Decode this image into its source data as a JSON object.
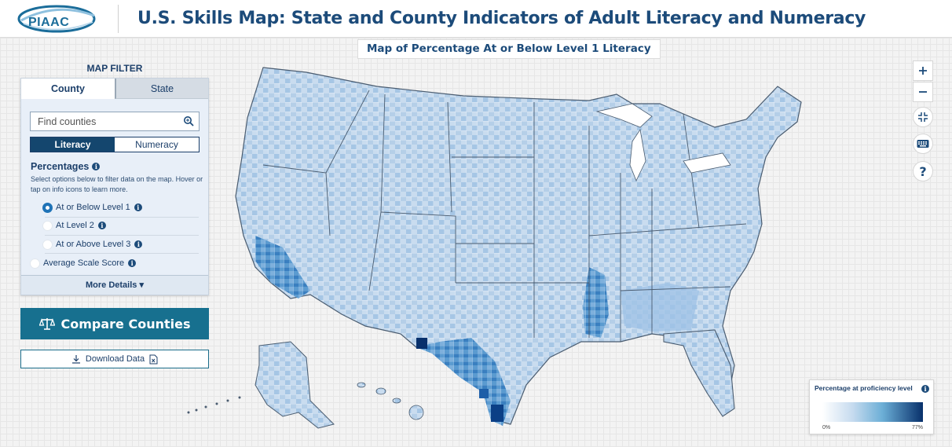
{
  "header": {
    "logo_text": "PIAAC",
    "title": "U.S. Skills Map: State and County Indicators of Adult Literacy and Numeracy"
  },
  "map": {
    "caption": "Map of Percentage At or Below Level 1 Literacy"
  },
  "filter": {
    "heading": "MAP FILTER",
    "tabs": [
      {
        "label": "County",
        "active": true
      },
      {
        "label": "State",
        "active": false
      }
    ],
    "search_placeholder": "Find counties",
    "subject": [
      {
        "label": "Literacy",
        "active": true
      },
      {
        "label": "Numeracy",
        "active": false
      }
    ],
    "percentages_title": "Percentages",
    "help_text": "Select options below to filter data on the map. Hover or tap on info icons to learn more.",
    "options": [
      {
        "label": "At or Below Level 1",
        "checked": true
      },
      {
        "label": "At Level 2",
        "checked": false
      },
      {
        "label": "At or Above Level 3",
        "checked": false
      }
    ],
    "avg_option": {
      "label": "Average Scale Score",
      "checked": false
    },
    "more_details": "More Details"
  },
  "actions": {
    "compare": "Compare Counties",
    "download": "Download Data"
  },
  "legend": {
    "title": "Percentage at proficiency level",
    "min": "0%",
    "max": "77%"
  },
  "colors": {
    "brand": "#1c4b7a",
    "compare_button": "#17708f",
    "map_light": "#dbe8f6",
    "map_mid": "#6baed6",
    "map_dark": "#08306b"
  }
}
